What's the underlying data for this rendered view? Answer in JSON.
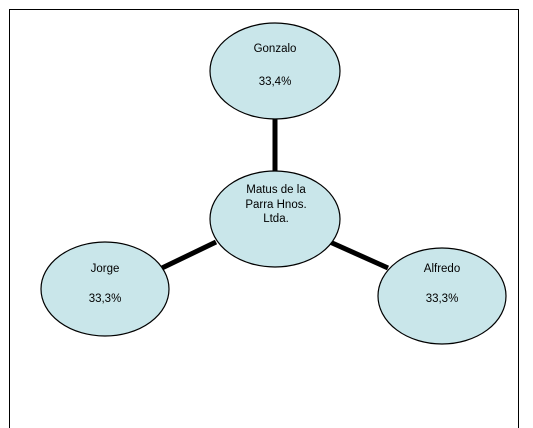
{
  "diagram": {
    "center": {
      "lines": [
        "Matus de la",
        "Parra Hnos.",
        "Ltda."
      ]
    },
    "nodes": [
      {
        "id": "gonzalo",
        "name": "Gonzalo",
        "share": "33,4%"
      },
      {
        "id": "jorge",
        "name": "Jorge",
        "share": "33,3%"
      },
      {
        "id": "alfredo",
        "name": "Alfredo",
        "share": "33,3%"
      }
    ]
  },
  "colors": {
    "node_fill": "#c9e6ea",
    "node_stroke": "#000000",
    "connector": "#000000",
    "frame": "#000000"
  }
}
